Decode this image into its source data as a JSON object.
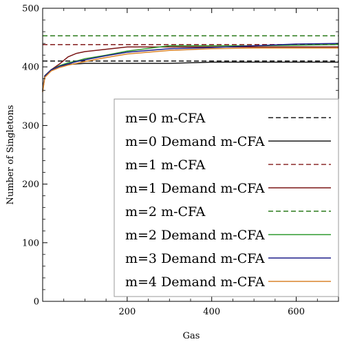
{
  "chart_data": {
    "type": "line",
    "xlabel": "Gas",
    "ylabel": "Number of Singletons",
    "xlim": [
      0,
      700
    ],
    "ylim": [
      0,
      500
    ],
    "x_ticks": [
      200,
      400,
      600
    ],
    "y_ticks": [
      0,
      100,
      200,
      300,
      400,
      500
    ],
    "grid": false,
    "legend_placement": "lower-right",
    "series": [
      {
        "name": "m=0 m-CFA",
        "style": "dashed",
        "color": "#1a1a1a",
        "x": [
          0,
          700
        ],
        "y": [
          410,
          410
        ]
      },
      {
        "name": "m=0 Demand m-CFA",
        "style": "solid",
        "color": "#1a1a1a",
        "x": [
          0,
          5,
          20,
          40,
          60,
          80,
          100,
          150,
          200,
          300,
          400,
          500,
          600,
          700
        ],
        "y": [
          362,
          385,
          395,
          401,
          404,
          405,
          406,
          406,
          406,
          406,
          408,
          408,
          408,
          408
        ]
      },
      {
        "name": "m=1 m-CFA",
        "style": "dashed",
        "color": "#8b2a2a",
        "x": [
          0,
          700
        ],
        "y": [
          438,
          438
        ]
      },
      {
        "name": "m=1 Demand m-CFA",
        "style": "solid",
        "color": "#7a1515",
        "x": [
          0,
          5,
          20,
          40,
          60,
          80,
          100,
          150,
          200,
          300,
          400,
          500,
          600,
          700
        ],
        "y": [
          358,
          383,
          395,
          405,
          417,
          423,
          426,
          430,
          434,
          434,
          434,
          434,
          434,
          434
        ]
      },
      {
        "name": "m=2 m-CFA",
        "style": "dashed",
        "color": "#2a7a1a",
        "x": [
          0,
          700
        ],
        "y": [
          453,
          453
        ]
      },
      {
        "name": "m=2 Demand m-CFA",
        "style": "solid",
        "color": "#2e9a2e",
        "x": [
          0,
          5,
          20,
          40,
          60,
          80,
          100,
          150,
          200,
          300,
          400,
          500,
          600,
          700
        ],
        "y": [
          360,
          384,
          395,
          402,
          407,
          410,
          414,
          420,
          427,
          436,
          436,
          436,
          437,
          438
        ]
      },
      {
        "name": "m=3 Demand m-CFA",
        "style": "solid",
        "color": "#1c1c8a",
        "x": [
          0,
          5,
          20,
          40,
          60,
          80,
          100,
          150,
          200,
          300,
          400,
          500,
          600,
          700
        ],
        "y": [
          360,
          384,
          395,
          401,
          405,
          409,
          412,
          419,
          425,
          431,
          433,
          436,
          439,
          440
        ]
      },
      {
        "name": "m=4 Demand m-CFA",
        "style": "solid",
        "color": "#d9842a",
        "x": [
          0,
          5,
          20,
          40,
          60,
          80,
          100,
          150,
          200,
          300,
          400,
          500,
          600,
          700
        ],
        "y": [
          357,
          382,
          393,
          399,
          403,
          406,
          409,
          416,
          422,
          428,
          431,
          432,
          432,
          432
        ]
      }
    ]
  }
}
